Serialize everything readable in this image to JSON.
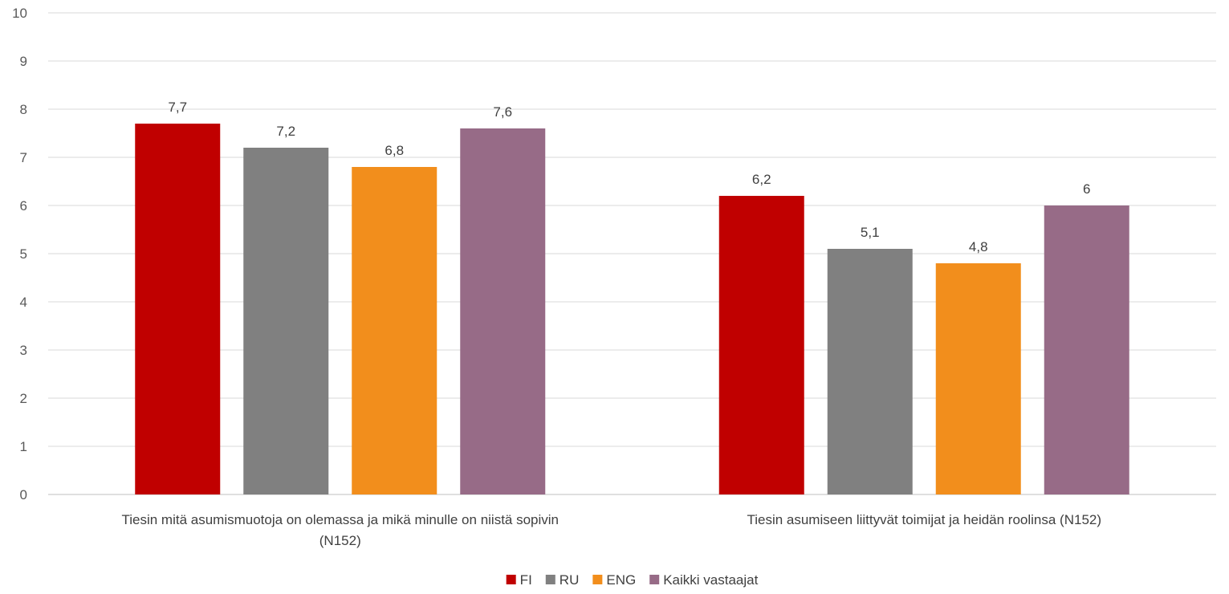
{
  "chart_data": {
    "type": "bar",
    "title": "",
    "xlabel": "",
    "ylabel": "",
    "ylim": [
      0,
      10
    ],
    "yticks": [
      0,
      1,
      2,
      3,
      4,
      5,
      6,
      7,
      8,
      9,
      10
    ],
    "grid": true,
    "legend_position": "bottom",
    "categories": [
      [
        "Tiesin mitä asumismuotoja on olemassa ja mikä minulle on niistä sopivin",
        "(N152)"
      ],
      [
        "Tiesin asumiseen liittyvät toimijat ja heidän roolinsa (N152)"
      ]
    ],
    "series": [
      {
        "name": "FI",
        "color": "#c00000",
        "values": [
          7.7,
          6.2
        ],
        "labels": [
          "7,7",
          "6,2"
        ]
      },
      {
        "name": "RU",
        "color": "#808080",
        "values": [
          7.2,
          5.1
        ],
        "labels": [
          "7,2",
          "5,1"
        ]
      },
      {
        "name": "ENG",
        "color": "#f28e1c",
        "values": [
          6.8,
          4.8
        ],
        "labels": [
          "6,8",
          "4,8"
        ]
      },
      {
        "name": "Kaikki vastaajat",
        "color": "#976b87",
        "values": [
          7.6,
          6.0
        ],
        "labels": [
          "7,6",
          "6"
        ]
      }
    ]
  }
}
